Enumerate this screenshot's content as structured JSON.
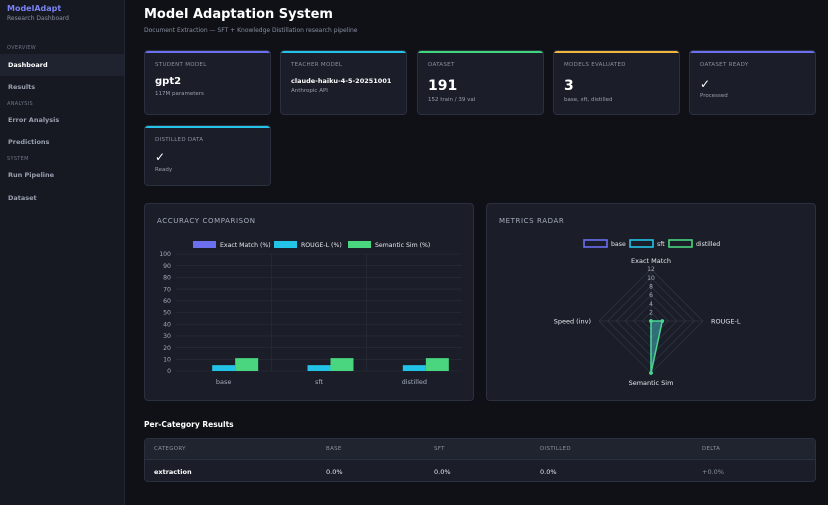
{
  "sidebar": {
    "brand": "ModelAdapt",
    "brand_sub": "Research Dashboard",
    "sections": [
      {
        "label": "OVERVIEW",
        "items": [
          "Dashboard",
          "Results"
        ]
      },
      {
        "label": "ANALYSIS",
        "items": [
          "Error Analysis",
          "Predictions"
        ]
      },
      {
        "label": "SYSTEM",
        "items": [
          "Run Pipeline",
          "Dataset"
        ]
      }
    ],
    "active": "Dashboard"
  },
  "header": {
    "title": "Model Adaptation System",
    "subtitle": "Document Extraction — SFT + Knowledge Distillation research pipeline"
  },
  "cards": [
    {
      "label": "STUDENT MODEL",
      "value": "gpt2",
      "sub": "117M parameters",
      "color": "#6c6ff0"
    },
    {
      "label": "TEACHER MODEL",
      "value": "claude-haiku-4-5-20251001",
      "sub": "Anthropic API",
      "color": "#22c3e6"
    },
    {
      "label": "DATASET",
      "value": "191",
      "sub": "152 train / 39 val",
      "color": "#3fd67c"
    },
    {
      "label": "MODELS EVALUATED",
      "value": "3",
      "sub": "base, sft, distilled",
      "color": "#f2b63c"
    },
    {
      "label": "DATASET READY",
      "value": "✓",
      "sub": "Processed",
      "color": "#6c6ff0"
    },
    {
      "label": "DISTILLED DATA",
      "value": "✓",
      "sub": "Ready",
      "color": "#22c3e6"
    }
  ],
  "accuracy_panel": {
    "title": "ACCURACY COMPARISON"
  },
  "radar_panel": {
    "title": "METRICS RADAR"
  },
  "chart_data": [
    {
      "type": "bar",
      "title": "ACCURACY COMPARISON",
      "categories": [
        "base",
        "sft",
        "distilled"
      ],
      "series": [
        {
          "name": "Exact Match (%)",
          "color": "#6c6ff0",
          "values": [
            0,
            0,
            0
          ]
        },
        {
          "name": "ROUGE-L (%)",
          "color": "#22c3e6",
          "values": [
            5,
            5,
            5
          ]
        },
        {
          "name": "Semantic Sim (%)",
          "color": "#4ad67e",
          "values": [
            11,
            11,
            11
          ]
        }
      ],
      "ylim": [
        0,
        100
      ],
      "yticks": [
        0,
        10,
        20,
        30,
        40,
        50,
        60,
        70,
        80,
        90,
        100
      ],
      "legend": "top",
      "grid": true
    },
    {
      "type": "radar",
      "title": "METRICS RADAR",
      "axes": [
        "Exact Match",
        "ROUGE-L",
        "Semantic Sim",
        "Speed (inv)"
      ],
      "rticks": [
        2,
        4,
        6,
        8,
        10,
        12
      ],
      "rmax": 12,
      "series": [
        {
          "name": "base",
          "color": "#6c6ff0",
          "values": [
            0,
            2.6,
            12,
            0
          ]
        },
        {
          "name": "sft",
          "color": "#22c3e6",
          "values": [
            0,
            2.6,
            12,
            0
          ]
        },
        {
          "name": "distilled",
          "color": "#4ad67e",
          "values": [
            0,
            2.6,
            12,
            0
          ]
        }
      ],
      "legend": "top"
    }
  ],
  "per_category": {
    "title": "Per-Category Results",
    "columns": [
      "CATEGORY",
      "BASE",
      "SFT",
      "DISTILLED",
      "DELTA"
    ],
    "rows": [
      [
        "extraction",
        "0.0%",
        "0.0%",
        "0.0%",
        "+0.0%"
      ]
    ]
  }
}
